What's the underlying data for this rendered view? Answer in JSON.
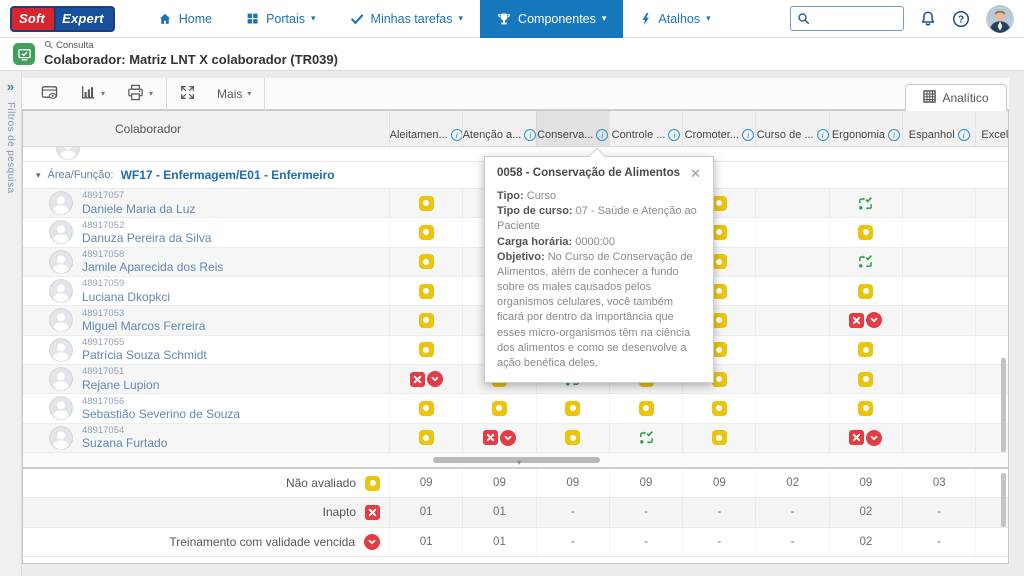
{
  "colors": {
    "accent_blue": "#1878be",
    "link_blue": "#1f6fb5",
    "yellow": "#eac40e",
    "red": "#e23c45",
    "green": "#2f9e44"
  },
  "nav": {
    "logo_soft": "Soft",
    "logo_expert": "Expert",
    "items": [
      {
        "label": "Home",
        "icon": "home-icon",
        "active": false,
        "caret": false
      },
      {
        "label": "Portais",
        "icon": "portals-grid-icon",
        "active": false,
        "caret": true
      },
      {
        "label": "Minhas tarefas",
        "icon": "tasks-check-icon",
        "active": false,
        "caret": true
      },
      {
        "label": "Componentes",
        "icon": "components-trophy-icon",
        "active": true,
        "caret": true
      },
      {
        "label": "Atalhos",
        "icon": "shortcuts-bolt-icon",
        "active": false,
        "caret": true
      }
    ],
    "search_value": ""
  },
  "page_header": {
    "breadcrumb": "Consulta",
    "title": "Colaborador: Matriz LNT X colaborador (TR039)"
  },
  "filters_sidebar": {
    "label": "Filtros de pesquisa"
  },
  "toolbar": {
    "buttons": [
      {
        "name": "view-record",
        "icon": "view-record-icon",
        "caret": false,
        "label": ""
      },
      {
        "name": "chart",
        "icon": "chart-icon",
        "caret": true,
        "label": ""
      },
      {
        "name": "print",
        "icon": "print-icon",
        "caret": true,
        "label": ""
      },
      {
        "name": "expand",
        "icon": "expand-icon",
        "caret": false,
        "label": ""
      },
      {
        "name": "more",
        "icon": "",
        "caret": true,
        "label": "Mais"
      }
    ],
    "tab_label": "Analítico"
  },
  "grid": {
    "left_header": "Colaborador",
    "group": {
      "prefix": "Área/Função:",
      "value": "WF17 - Enfermagem/E01 - Enfermeiro"
    },
    "columns": [
      "Aleitamen...",
      "Atenção a...",
      "Conserva...",
      "Controle ...",
      "Cromoter...",
      "Curso de ...",
      "Ergonomia",
      "Espanhol",
      "Excelê"
    ],
    "highlighted_column": 2,
    "rows": [
      {
        "id": "48917057",
        "name": "Daniele Maria da Luz",
        "cells": [
          "nao-avaliado",
          "nao-avaliado",
          "nao-avaliado",
          "nao-avaliado",
          "nao-avaliado",
          "",
          "em-processo",
          "",
          ""
        ]
      },
      {
        "id": "48917052",
        "name": "Danuza Pereira da Silva",
        "cells": [
          "nao-avaliado",
          "nao-avaliado",
          "nao-avaliado",
          "nao-avaliado",
          "nao-avaliado",
          "",
          "nao-avaliado",
          "",
          ""
        ]
      },
      {
        "id": "48917058",
        "name": "Jamile Aparecida dos Reis",
        "cells": [
          "nao-avaliado",
          "nao-avaliado",
          "nao-avaliado",
          "nao-avaliado",
          "nao-avaliado",
          "",
          "em-processo",
          "",
          ""
        ]
      },
      {
        "id": "48917059",
        "name": "Luciana Dkopkci",
        "cells": [
          "nao-avaliado",
          "nao-avaliado",
          "nao-avaliado",
          "nao-avaliado",
          "nao-avaliado",
          "",
          "nao-avaliado",
          "",
          ""
        ]
      },
      {
        "id": "48917053",
        "name": "Miguel Marcos Ferreira",
        "cells": [
          "nao-avaliado",
          "nao-avaliado",
          "nao-avaliado",
          "nao-avaliado",
          "nao-avaliado",
          "",
          "inapto-vencido",
          "",
          ""
        ]
      },
      {
        "id": "48917055",
        "name": "Patrícia Souza Schmidt",
        "cells": [
          "nao-avaliado",
          "nao-avaliado",
          "nao-avaliado",
          "nao-avaliado",
          "nao-avaliado",
          "",
          "nao-avaliado",
          "",
          ""
        ]
      },
      {
        "id": "48917051",
        "name": "Rejane Lupion",
        "cells": [
          "inapto-vencido",
          "nao-avaliado",
          "em-processo",
          "nao-avaliado",
          "nao-avaliado",
          "",
          "nao-avaliado",
          "",
          ""
        ]
      },
      {
        "id": "48917056",
        "name": "Sebastião Severino de Souza",
        "cells": [
          "nao-avaliado",
          "nao-avaliado",
          "nao-avaliado",
          "nao-avaliado",
          "nao-avaliado",
          "",
          "nao-avaliado",
          "",
          ""
        ]
      },
      {
        "id": "48917054",
        "name": "Suzana Furtado",
        "cells": [
          "nao-avaliado",
          "inapto-vencido",
          "nao-avaliado",
          "em-processo",
          "nao-avaliado",
          "",
          "inapto-vencido",
          "",
          ""
        ]
      }
    ],
    "summary": [
      {
        "label": "Não avaliado",
        "icon": "nao-avaliado",
        "values": [
          "09",
          "09",
          "09",
          "09",
          "09",
          "02",
          "09",
          "03",
          ""
        ]
      },
      {
        "label": "Inapto",
        "icon": "inapto",
        "values": [
          "01",
          "01",
          "-",
          "-",
          "-",
          "-",
          "02",
          "-",
          ""
        ]
      },
      {
        "label": "Treinamento com validade vencida",
        "icon": "validade-vencida",
        "values": [
          "01",
          "01",
          "-",
          "-",
          "-",
          "-",
          "02",
          "-",
          ""
        ]
      }
    ]
  },
  "tooltip": {
    "title": "0058 - Conservação de Alimentos",
    "fields": [
      {
        "label": "Tipo:",
        "value": "Curso"
      },
      {
        "label": "Tipo de curso:",
        "value": "07 - Saúde e Atenção ao Paciente"
      },
      {
        "label": "Carga horária:",
        "value": "0000:00"
      },
      {
        "label": "Objetivo:",
        "value": "No Curso de Conservação de Alimentos, além de conhecer a fundo sobre os males causados pelos organismos celulares, você também ficará por dentro da importância que esses micro-organismos têm na ciência dos alimentos e como se desenvolve a ação benéfica deles."
      }
    ]
  }
}
